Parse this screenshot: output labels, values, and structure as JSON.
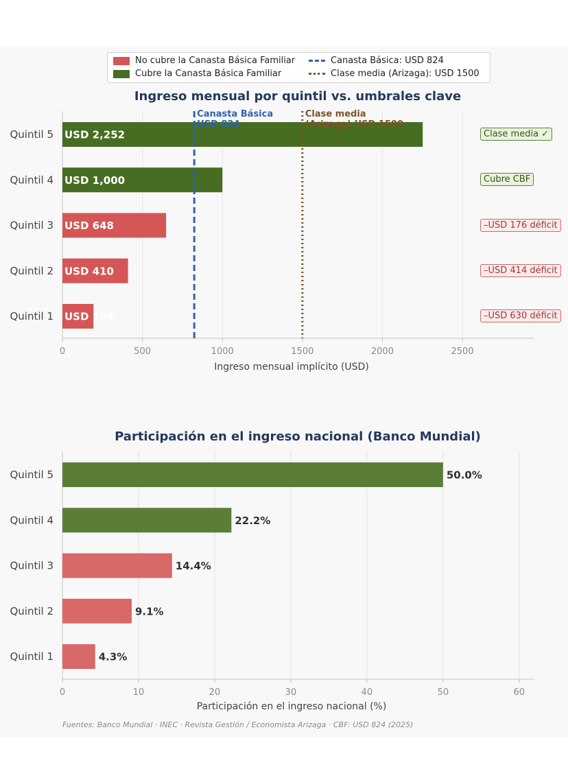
{
  "legend": {
    "no_cubre": "No cubre la Canasta Básica Familiar",
    "cubre": "Cubre la Canasta Básica Familiar",
    "canasta": "Canasta Básica: USD 824",
    "clase_media": "Clase media (Arizaga): USD 1500"
  },
  "colors": {
    "no_cubre": "#d45656",
    "cubre": "#476d22",
    "no_cubre_light": "#d96868",
    "cubre_light": "#5c7d38",
    "canasta_line": "#2f62ad",
    "clase_media_line": "#7a5424"
  },
  "chart_data": [
    {
      "type": "bar",
      "orientation": "horizontal",
      "title": "Ingreso mensual por quintil vs. umbrales clave",
      "xlabel": "Ingreso mensual implícito (USD)",
      "ylabel": "",
      "categories": [
        "Quintil 5",
        "Quintil 4",
        "Quintil 3",
        "Quintil 2",
        "Quintil 1"
      ],
      "values": [
        2252,
        1000,
        648,
        410,
        194
      ],
      "value_labels": [
        "USD 2,252",
        "USD 1,000",
        "USD 648",
        "USD 410",
        "USD 194"
      ],
      "covers_cbf": [
        true,
        true,
        false,
        false,
        false
      ],
      "status_badges": [
        "Clase media ✓",
        "Cubre CBF",
        "–USD 176 déficit",
        "–USD 414 déficit",
        "–USD 630 déficit"
      ],
      "xlim": [
        0,
        2950
      ],
      "xticks": [
        0,
        500,
        1000,
        1500,
        2000,
        2500
      ],
      "grid": true,
      "reference_lines": [
        {
          "x": 824,
          "label": "Canasta Básica\nUSD 824",
          "style": "dashed",
          "color": "#2f62ad"
        },
        {
          "x": 1500,
          "label": "Clase media\n(Arizaga) USD 1500",
          "style": "dotted",
          "color": "#7a5424"
        }
      ],
      "legend": "top-center"
    },
    {
      "type": "bar",
      "orientation": "horizontal",
      "title": "Participación en el ingreso nacional (Banco Mundial)",
      "xlabel": "Participación en el ingreso nacional (%)",
      "ylabel": "",
      "categories": [
        "Quintil 5",
        "Quintil 4",
        "Quintil 3",
        "Quintil 2",
        "Quintil 1"
      ],
      "values": [
        50.0,
        22.2,
        14.4,
        9.1,
        4.3
      ],
      "value_labels": [
        "50.0%",
        "22.2%",
        "14.4%",
        "9.1%",
        "4.3%"
      ],
      "covers_cbf": [
        true,
        true,
        false,
        false,
        false
      ],
      "xlim": [
        0,
        62
      ],
      "xticks": [
        0,
        10,
        20,
        30,
        40,
        50,
        60
      ],
      "grid": true
    }
  ],
  "source": "Fuentes: Banco Mundial · INEC · Revista Gestión / Economista Arizaga · CBF: USD 824 (2025)"
}
